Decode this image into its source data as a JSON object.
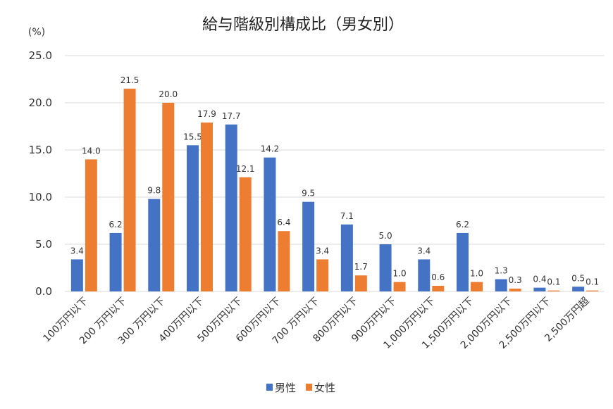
{
  "chart_data": {
    "type": "bar",
    "title": "給与階級別構成比（男女別）",
    "ylabel": "(%)",
    "xlabel": "",
    "ylim": [
      0,
      25
    ],
    "yticks": [
      "0.0",
      "5.0",
      "10.0",
      "15.0",
      "20.0",
      "25.0"
    ],
    "grid": true,
    "legend_position": "bottom",
    "categories": [
      "100万円以下",
      "200 万円以下",
      "300 万円以下",
      "400万円以下",
      "500万円以下",
      "600万円以下",
      "700 万円以下",
      "800万円以下",
      "900万円以下",
      "1,000万円以下",
      "1,500万円以下",
      "2,000万円以下",
      "2,500万円以下",
      "2,500万円超"
    ],
    "series": [
      {
        "name": "男性",
        "color": "#4472C4",
        "values": [
          3.4,
          6.2,
          9.8,
          15.5,
          17.7,
          14.2,
          9.5,
          7.1,
          5.0,
          3.4,
          6.2,
          1.3,
          0.4,
          0.5
        ]
      },
      {
        "name": "女性",
        "color": "#ED7D31",
        "values": [
          14.0,
          21.5,
          20.0,
          17.9,
          12.1,
          6.4,
          3.4,
          1.7,
          1.0,
          0.6,
          1.0,
          0.3,
          0.1,
          0.1
        ]
      }
    ]
  }
}
